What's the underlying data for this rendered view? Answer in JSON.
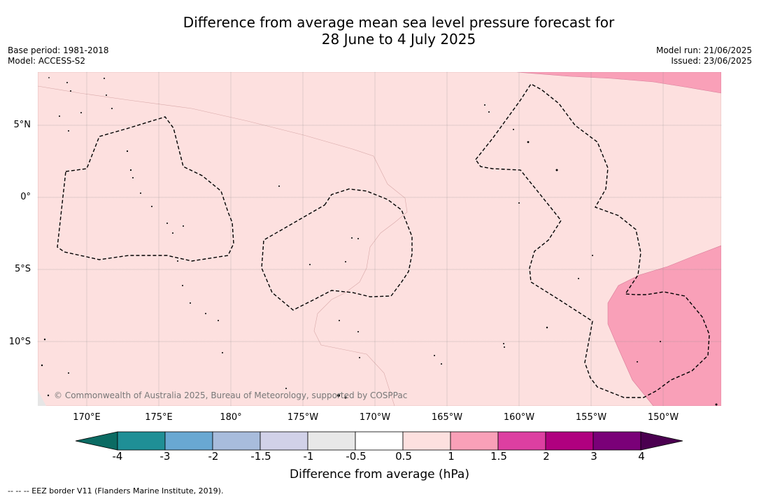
{
  "title_line1": "Difference from average mean sea level pressure forecast for",
  "title_line2": "28 June to 4 July 2025",
  "meta_left": {
    "base_period": "Base period: 1981-2018",
    "model": "Model: ACCESS-S2"
  },
  "meta_right": {
    "model_run": "Model run: 21/06/2025",
    "issued": "Issued: 23/06/2025"
  },
  "lat_labels": [
    "5°N",
    "0°",
    "5°S",
    "10°S"
  ],
  "lon_labels": [
    "170°E",
    "175°E",
    "180°",
    "175°W",
    "170°W",
    "165°W",
    "160°W",
    "155°W",
    "150°W"
  ],
  "copyright": "© Commonwealth of Australia 2025, Bureau of Meteorology, supported by COSPPac",
  "colorbar": {
    "ticks": [
      "-4",
      "-3",
      "-2",
      "-1.5",
      "-1",
      "-0.5",
      "0.5",
      "1",
      "1.5",
      "2",
      "3",
      "4"
    ],
    "colors": [
      "#0b6b63",
      "#1f8f96",
      "#69a8d2",
      "#a8bcdc",
      "#d1d1e8",
      "#e8e8e8",
      "#ffffff",
      "#fde0df",
      "#f9a0b8",
      "#dd3fa1",
      "#b0007f",
      "#7a0078",
      "#4b0050"
    ],
    "label": "Difference from average (hPa)"
  },
  "footnote": "--  --  -- EEZ border V11 (Flanders Marine Institute, 2019)."
}
